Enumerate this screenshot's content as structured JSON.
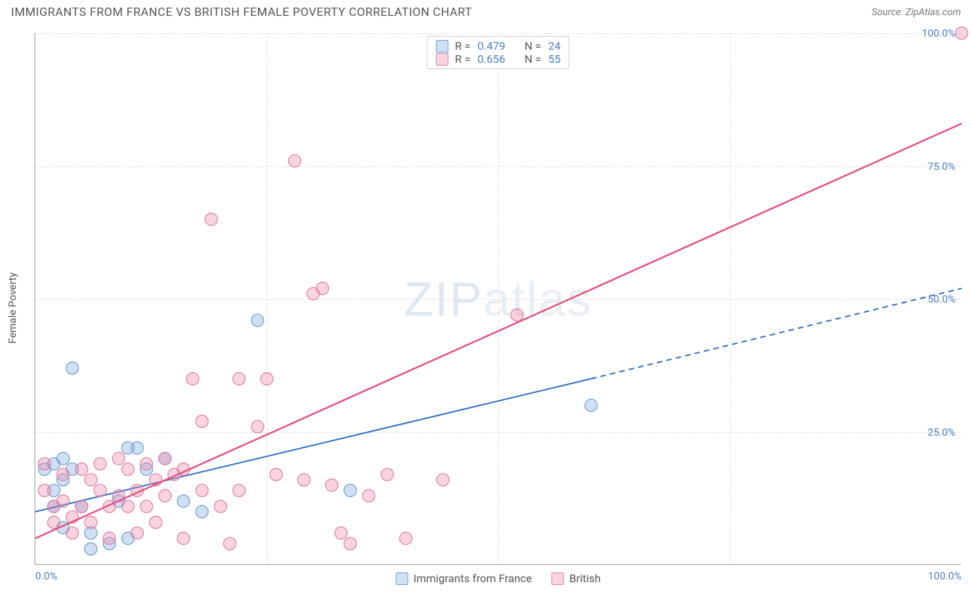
{
  "header": {
    "title": "IMMIGRANTS FROM FRANCE VS BRITISH FEMALE POVERTY CORRELATION CHART",
    "source_label": "Source:",
    "source_name": "ZipAtlas.com"
  },
  "chart": {
    "type": "scatter",
    "ylabel": "Female Poverty",
    "watermark": "ZIPatlas",
    "xlim": [
      0,
      100
    ],
    "ylim": [
      0,
      100
    ],
    "xticks": [
      0,
      25,
      50,
      75,
      100
    ],
    "yticks": [
      25,
      50,
      75,
      100
    ],
    "xtick_labels": [
      "0.0%",
      "",
      "",
      "",
      "100.0%"
    ],
    "ytick_labels": [
      "25.0%",
      "50.0%",
      "75.0%",
      "100.0%"
    ],
    "grid_color": "#dddddd",
    "axis_color": "#999999",
    "background_color": "#ffffff",
    "tick_label_color": "#4a7ec9",
    "tick_fontsize": 15,
    "series": [
      {
        "name": "Immigrants from France",
        "fill": "rgba(120,165,220,0.35)",
        "stroke": "#6b9bd1",
        "line_color": "#2f6fc2",
        "line_width": 2,
        "marker_radius": 9,
        "r_value": "0.479",
        "n_value": "24",
        "trend": {
          "x1": 0,
          "y1": 10,
          "x2": 60,
          "y2": 35,
          "dash_after_x": 60,
          "x2d": 100,
          "y2d": 52
        },
        "points": [
          [
            1,
            18
          ],
          [
            2,
            19
          ],
          [
            2,
            14
          ],
          [
            2,
            11
          ],
          [
            3,
            20
          ],
          [
            3,
            16
          ],
          [
            3,
            7
          ],
          [
            4,
            37
          ],
          [
            4,
            18
          ],
          [
            5,
            11
          ],
          [
            6,
            6
          ],
          [
            6,
            3
          ],
          [
            8,
            4
          ],
          [
            9,
            12
          ],
          [
            10,
            5
          ],
          [
            10,
            22
          ],
          [
            11,
            22
          ],
          [
            12,
            18
          ],
          [
            14,
            20
          ],
          [
            16,
            12
          ],
          [
            18,
            10
          ],
          [
            24,
            46
          ],
          [
            34,
            14
          ],
          [
            60,
            30
          ]
        ]
      },
      {
        "name": "British",
        "fill": "rgba(235,130,165,0.35)",
        "stroke": "#e07ba0",
        "line_color": "#e3527d",
        "line_width": 2.5,
        "marker_radius": 9,
        "r_value": "0.656",
        "n_value": "55",
        "trend": {
          "x1": 0,
          "y1": 5,
          "x2": 100,
          "y2": 83
        },
        "points": [
          [
            1,
            19
          ],
          [
            1,
            14
          ],
          [
            2,
            11
          ],
          [
            2,
            8
          ],
          [
            3,
            17
          ],
          [
            3,
            12
          ],
          [
            4,
            9
          ],
          [
            4,
            6
          ],
          [
            5,
            18
          ],
          [
            5,
            11
          ],
          [
            6,
            16
          ],
          [
            6,
            8
          ],
          [
            7,
            19
          ],
          [
            7,
            14
          ],
          [
            8,
            11
          ],
          [
            8,
            5
          ],
          [
            9,
            20
          ],
          [
            9,
            13
          ],
          [
            10,
            18
          ],
          [
            10,
            11
          ],
          [
            11,
            14
          ],
          [
            11,
            6
          ],
          [
            12,
            19
          ],
          [
            12,
            11
          ],
          [
            13,
            16
          ],
          [
            13,
            8
          ],
          [
            14,
            20
          ],
          [
            14,
            13
          ],
          [
            15,
            17
          ],
          [
            16,
            18
          ],
          [
            16,
            5
          ],
          [
            17,
            35
          ],
          [
            18,
            27
          ],
          [
            18,
            14
          ],
          [
            19,
            65
          ],
          [
            20,
            11
          ],
          [
            21,
            4
          ],
          [
            22,
            35
          ],
          [
            22,
            14
          ],
          [
            24,
            26
          ],
          [
            25,
            35
          ],
          [
            26,
            17
          ],
          [
            28,
            76
          ],
          [
            29,
            16
          ],
          [
            30,
            51
          ],
          [
            31,
            52
          ],
          [
            32,
            15
          ],
          [
            33,
            6
          ],
          [
            34,
            4
          ],
          [
            36,
            13
          ],
          [
            38,
            17
          ],
          [
            40,
            5
          ],
          [
            44,
            16
          ],
          [
            52,
            47
          ],
          [
            100,
            100
          ]
        ]
      }
    ],
    "legend_top": {
      "r_label": "R =",
      "n_label": "N ="
    },
    "legend_bottom": {
      "items": [
        "Immigrants from France",
        "British"
      ]
    }
  }
}
